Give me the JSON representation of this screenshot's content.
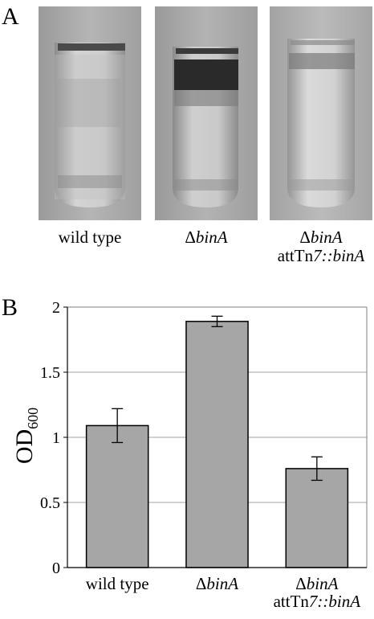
{
  "panel_a": {
    "letter": "A",
    "tubes": [
      {
        "label_prefix": "",
        "label_main": "wild type",
        "label_line2_prefix": "",
        "label_line2_italic": "",
        "label_line2_italic2": ""
      },
      {
        "label_prefix": "Δ",
        "label_main": "binA",
        "label_line2_prefix": "",
        "label_line2_italic": "",
        "label_line2_italic2": ""
      },
      {
        "label_prefix": "Δ",
        "label_main": "binA",
        "label_line2_prefix": "attTn",
        "label_line2_italic": "7",
        "label_line2_italic2": "::binA"
      }
    ]
  },
  "panel_b": {
    "letter": "B",
    "ylabel_main": "OD",
    "ylabel_sub": "600"
  },
  "chart_data": {
    "type": "bar",
    "categories": [
      "wild type",
      "ΔbinA",
      "ΔbinA attTn7::binA"
    ],
    "values": [
      1.09,
      1.89,
      0.76
    ],
    "errors": [
      0.13,
      0.04,
      0.09
    ],
    "ylim": [
      0,
      2
    ],
    "yticks": [
      "0",
      "0.5",
      "1",
      "1.5",
      "2"
    ],
    "grid": true,
    "colors": {
      "bar": "#a6a6a6",
      "edge": "#000000",
      "grid": "#a0a0a0",
      "frame": "#808080"
    }
  }
}
